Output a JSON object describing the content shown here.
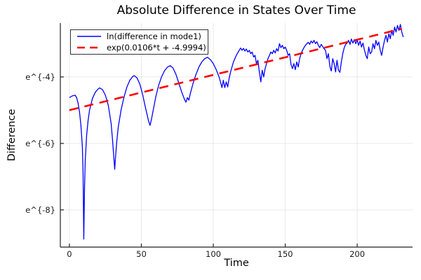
{
  "chart_data": {
    "type": "line",
    "title": "Absolute Difference in States Over Time",
    "xlabel": "Time",
    "ylabel": "Difference",
    "grid": true,
    "x_axis": {
      "range": [
        -6.3,
        238.5
      ],
      "ticks": [
        0,
        50,
        100,
        150,
        200
      ],
      "tick_labels": [
        "0",
        "50",
        "100",
        "150",
        "200"
      ]
    },
    "y_axis": {
      "scale": "ln",
      "range": [
        -9.12,
        -2.38
      ],
      "ticks": [
        -4,
        -6,
        -8
      ],
      "tick_labels": [
        "e^{-4}",
        "e^{-6}",
        "e^{-8}"
      ]
    },
    "legend": {
      "position": "top-left",
      "entries": [
        {
          "label": "ln(difference in mode1)",
          "color": "#0000ff",
          "line_style": "solid"
        },
        {
          "label": "exp(0.0106*t + -4.9994)",
          "color": "#ff0000",
          "line_style": "dashed"
        }
      ]
    },
    "colors": {
      "series": "#0000ff",
      "fit": "#ff0000",
      "grid": "#e9e9e9",
      "axis": "#222222",
      "tick_text": "#1a1a1a"
    },
    "series": [
      {
        "name": "ln(difference in mode1)",
        "color": "#0000ff",
        "style": "solid",
        "points": [
          [
            0,
            -4.62
          ],
          [
            2,
            -4.57
          ],
          [
            4,
            -4.55
          ],
          [
            5,
            -4.62
          ],
          [
            6,
            -4.78
          ],
          [
            7,
            -5.05
          ],
          [
            8,
            -5.45
          ],
          [
            9,
            -6.1
          ],
          [
            9.5,
            -6.9
          ],
          [
            10,
            -8.88
          ],
          [
            10.5,
            -7.3
          ],
          [
            11,
            -6.5
          ],
          [
            12,
            -5.75
          ],
          [
            13,
            -5.3
          ],
          [
            14,
            -5.0
          ],
          [
            16,
            -4.65
          ],
          [
            18,
            -4.46
          ],
          [
            20,
            -4.36
          ],
          [
            21,
            -4.33
          ],
          [
            23,
            -4.38
          ],
          [
            25,
            -4.55
          ],
          [
            27,
            -4.85
          ],
          [
            29,
            -5.4
          ],
          [
            30,
            -5.9
          ],
          [
            31,
            -6.5
          ],
          [
            31.5,
            -6.78
          ],
          [
            32,
            -6.45
          ],
          [
            33,
            -5.9
          ],
          [
            34,
            -5.5
          ],
          [
            36,
            -4.98
          ],
          [
            38,
            -4.6
          ],
          [
            40,
            -4.3
          ],
          [
            42,
            -4.1
          ],
          [
            44,
            -3.99
          ],
          [
            45,
            -3.96
          ],
          [
            47,
            -4.03
          ],
          [
            49,
            -4.22
          ],
          [
            51,
            -4.55
          ],
          [
            53,
            -4.95
          ],
          [
            55,
            -5.32
          ],
          [
            56,
            -5.46
          ],
          [
            57,
            -5.28
          ],
          [
            58,
            -5.05
          ],
          [
            60,
            -4.6
          ],
          [
            62,
            -4.25
          ],
          [
            64,
            -4.0
          ],
          [
            66,
            -3.82
          ],
          [
            68,
            -3.71
          ],
          [
            70,
            -3.66
          ],
          [
            72,
            -3.73
          ],
          [
            74,
            -3.92
          ],
          [
            76,
            -4.18
          ],
          [
            78,
            -4.45
          ],
          [
            80,
            -4.68
          ],
          [
            81,
            -4.76
          ],
          [
            82,
            -4.62
          ],
          [
            83,
            -4.7
          ],
          [
            84,
            -4.5
          ],
          [
            86,
            -4.18
          ],
          [
            88,
            -3.92
          ],
          [
            90,
            -3.7
          ],
          [
            92,
            -3.55
          ],
          [
            94,
            -3.45
          ],
          [
            96,
            -3.41
          ],
          [
            98,
            -3.48
          ],
          [
            100,
            -3.6
          ],
          [
            102,
            -3.78
          ],
          [
            104,
            -4.0
          ],
          [
            105,
            -4.15
          ],
          [
            106,
            -4.32
          ],
          [
            107,
            -4.1
          ],
          [
            108,
            -4.32
          ],
          [
            109,
            -4.15
          ],
          [
            110,
            -4.3
          ],
          [
            111,
            -4.05
          ],
          [
            112,
            -3.85
          ],
          [
            114,
            -3.55
          ],
          [
            116,
            -3.35
          ],
          [
            118,
            -3.2
          ],
          [
            119,
            -3.13
          ],
          [
            120,
            -3.2
          ],
          [
            121,
            -3.14
          ],
          [
            122,
            -3.22
          ],
          [
            123,
            -3.16
          ],
          [
            124,
            -3.25
          ],
          [
            125,
            -3.2
          ],
          [
            126,
            -3.3
          ],
          [
            127,
            -3.25
          ],
          [
            128,
            -3.4
          ],
          [
            129,
            -3.35
          ],
          [
            130,
            -3.6
          ],
          [
            131,
            -3.5
          ],
          [
            132,
            -3.85
          ],
          [
            133,
            -4.15
          ],
          [
            134,
            -3.8
          ],
          [
            135,
            -4.0
          ],
          [
            136,
            -3.75
          ],
          [
            137,
            -3.6
          ],
          [
            138,
            -3.45
          ],
          [
            139,
            -3.35
          ],
          [
            140,
            -3.25
          ],
          [
            141,
            -3.3
          ],
          [
            142,
            -3.2
          ],
          [
            143,
            -3.28
          ],
          [
            144,
            -3.15
          ],
          [
            145,
            -3.22
          ],
          [
            146,
            -3.0
          ],
          [
            147,
            -3.12
          ],
          [
            148,
            -3.05
          ],
          [
            149,
            -3.15
          ],
          [
            150,
            -3.1
          ],
          [
            151,
            -3.2
          ],
          [
            152,
            -3.35
          ],
          [
            153,
            -3.3
          ],
          [
            154,
            -3.62
          ],
          [
            155,
            -3.75
          ],
          [
            156,
            -3.6
          ],
          [
            157,
            -3.78
          ],
          [
            158,
            -3.55
          ],
          [
            159,
            -3.7
          ],
          [
            160,
            -3.45
          ],
          [
            161,
            -3.3
          ],
          [
            162,
            -3.2
          ],
          [
            163,
            -3.12
          ],
          [
            164,
            -3.05
          ],
          [
            165,
            -3.0
          ],
          [
            166,
            -2.96
          ],
          [
            167,
            -3.02
          ],
          [
            168,
            -2.92
          ],
          [
            169,
            -2.98
          ],
          [
            170,
            -2.9
          ],
          [
            171,
            -3.0
          ],
          [
            172,
            -2.94
          ],
          [
            173,
            -3.05
          ],
          [
            174,
            -3.12
          ],
          [
            175,
            -3.02
          ],
          [
            176,
            -3.08
          ],
          [
            177,
            -3.15
          ],
          [
            178,
            -3.2
          ],
          [
            179,
            -3.45
          ],
          [
            180,
            -3.3
          ],
          [
            181,
            -3.68
          ],
          [
            182,
            -3.82
          ],
          [
            183,
            -3.45
          ],
          [
            184,
            -3.6
          ],
          [
            185,
            -3.85
          ],
          [
            186,
            -3.5
          ],
          [
            187,
            -3.8
          ],
          [
            188,
            -3.86
          ],
          [
            189,
            -3.55
          ],
          [
            190,
            -3.3
          ],
          [
            191,
            -3.12
          ],
          [
            192,
            -3.02
          ],
          [
            193,
            -2.98
          ],
          [
            194,
            -2.9
          ],
          [
            195,
            -3.02
          ],
          [
            196,
            -2.86
          ],
          [
            197,
            -2.98
          ],
          [
            198,
            -2.88
          ],
          [
            199,
            -3.0
          ],
          [
            200,
            -2.88
          ],
          [
            201,
            -3.05
          ],
          [
            202,
            -2.92
          ],
          [
            203,
            -3.1
          ],
          [
            204,
            -2.98
          ],
          [
            205,
            -3.18
          ],
          [
            206,
            -3.35
          ],
          [
            207,
            -3.45
          ],
          [
            208,
            -3.1
          ],
          [
            209,
            -3.3
          ],
          [
            210,
            -3.25
          ],
          [
            211,
            -3.0
          ],
          [
            212,
            -3.15
          ],
          [
            213,
            -2.9
          ],
          [
            214,
            -3.05
          ],
          [
            215,
            -2.95
          ],
          [
            216,
            -3.2
          ],
          [
            217,
            -3.35
          ],
          [
            218,
            -3.1
          ],
          [
            219,
            -2.9
          ],
          [
            220,
            -2.75
          ],
          [
            221,
            -2.95
          ],
          [
            222,
            -2.7
          ],
          [
            223,
            -2.85
          ],
          [
            224,
            -2.6
          ],
          [
            225,
            -2.75
          ],
          [
            226,
            -2.5
          ],
          [
            227,
            -2.65
          ],
          [
            228,
            -2.45
          ],
          [
            229,
            -2.6
          ],
          [
            230,
            -2.42
          ],
          [
            231,
            -2.65
          ],
          [
            232,
            -2.8
          ]
        ]
      },
      {
        "name": "exp(0.0106*t + -4.9994)",
        "color": "#ff0000",
        "style": "dashed",
        "fit": {
          "slope": 0.0106,
          "intercept": -4.9994
        },
        "t_range": [
          0,
          231
        ]
      }
    ]
  }
}
